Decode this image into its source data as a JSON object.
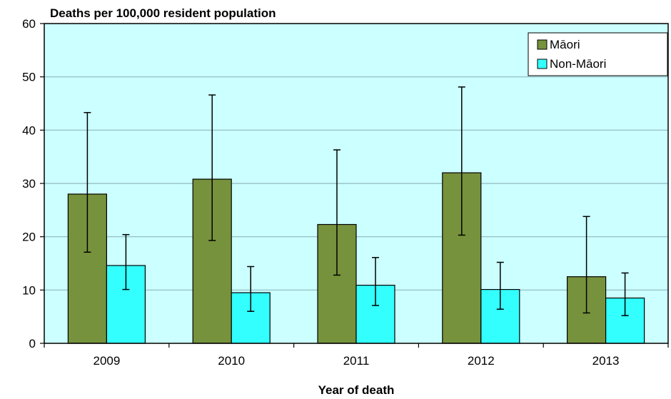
{
  "chart_data": {
    "type": "bar",
    "title": "Deaths per 100,000 resident population",
    "xlabel": "Year of death",
    "ylabel": "",
    "categories": [
      "2009",
      "2010",
      "2011",
      "2012",
      "2013"
    ],
    "ylim": [
      0,
      60
    ],
    "yticks": [
      0,
      10,
      20,
      30,
      40,
      50,
      60
    ],
    "grid": true,
    "legend_position": "top-right",
    "plot_background": "#ccffff",
    "series": [
      {
        "name": "Māori",
        "color": "#76923c",
        "values": [
          28.0,
          30.8,
          22.3,
          32.0,
          12.5
        ],
        "error_low": [
          17.1,
          19.3,
          12.8,
          20.3,
          5.7
        ],
        "error_high": [
          43.3,
          46.6,
          36.3,
          48.1,
          23.8
        ]
      },
      {
        "name": "Non-Māori",
        "color": "#33ffff",
        "values": [
          14.6,
          9.5,
          10.9,
          10.1,
          8.5
        ],
        "error_low": [
          10.1,
          6.0,
          7.1,
          6.4,
          5.2
        ],
        "error_high": [
          20.4,
          14.4,
          16.1,
          15.2,
          13.2
        ]
      }
    ]
  }
}
